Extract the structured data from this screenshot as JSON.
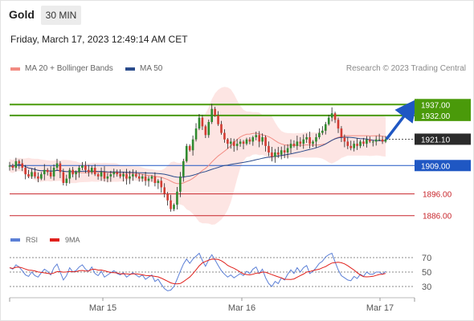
{
  "header": {
    "symbol": "Gold",
    "timeframe": "30 MIN",
    "timestamp": "Friday, March 17, 2023 12:49:14 AM CET"
  },
  "legend": {
    "ma_bb": {
      "label": "MA 20 + Bollinger Bands",
      "color": "#f28b82"
    },
    "ma50": {
      "label": "MA 50",
      "color": "#2b4c8c"
    },
    "credit": "Research © 2023 Trading Central"
  },
  "rsi_legend": {
    "rsi": {
      "label": "RSI",
      "color": "#5b7fd6"
    },
    "ma9": {
      "label": "9MA",
      "color": "#e0201b"
    }
  },
  "chart_data": {
    "type": "candlestick",
    "price_range": [
      1880,
      1950
    ],
    "x_labels": [
      "Mar 15",
      "Mar 16",
      "Mar 17"
    ],
    "levels": [
      {
        "value": 1937.0,
        "label": "1937.00",
        "kind": "resistance",
        "color": "#4a9a0a"
      },
      {
        "value": 1932.0,
        "label": "1932.00",
        "kind": "resistance",
        "color": "#4a9a0a"
      },
      {
        "value": 1921.1,
        "label": "1921.10",
        "kind": "last",
        "color": "#2b2b2b"
      },
      {
        "value": 1909.0,
        "label": "1909.00",
        "kind": "pivot",
        "color": "#1f57c3"
      },
      {
        "value": 1896.0,
        "label": "1896.00",
        "kind": "support",
        "color": "#c8242a"
      },
      {
        "value": 1886.0,
        "label": "1886.00",
        "kind": "support",
        "color": "#c8242a"
      }
    ],
    "forecast_arrow": {
      "from": 1921.1,
      "to": 1937.0,
      "color": "#1f57c3"
    },
    "candles_close": [
      1909,
      1908,
      1911,
      1910,
      1908,
      1905,
      1904,
      1906,
      1904,
      1903,
      1905,
      1907,
      1906,
      1904,
      1908,
      1910,
      1906,
      1901,
      1903,
      1907,
      1905,
      1906,
      1908,
      1909,
      1907,
      1906,
      1908,
      1905,
      1904,
      1906,
      1903,
      1904,
      1905,
      1906,
      1905,
      1904,
      1905,
      1903,
      1904,
      1905,
      1904,
      1903,
      1904,
      1902,
      1903,
      1904,
      1901,
      1902,
      1899,
      1896,
      1893,
      1889,
      1891,
      1897,
      1904,
      1911,
      1918,
      1916,
      1921,
      1926,
      1931,
      1927,
      1923,
      1929,
      1935,
      1932,
      1928,
      1924,
      1921,
      1919,
      1920,
      1918,
      1919,
      1920,
      1919,
      1921,
      1920,
      1922,
      1923,
      1920,
      1922,
      1918,
      1915,
      1913,
      1915,
      1914,
      1916,
      1915,
      1917,
      1919,
      1918,
      1920,
      1919,
      1921,
      1922,
      1919,
      1920,
      1922,
      1924,
      1925,
      1928,
      1931,
      1933,
      1930,
      1926,
      1922,
      1920,
      1918,
      1917,
      1919,
      1918,
      1920,
      1919,
      1921,
      1920,
      1920,
      1921,
      1921,
      1920,
      1921.1
    ],
    "rsi": {
      "levels": [
        70,
        50,
        30
      ],
      "range": [
        20,
        80
      ],
      "values": [
        56,
        54,
        60,
        57,
        52,
        46,
        44,
        50,
        45,
        43,
        49,
        54,
        51,
        46,
        56,
        61,
        50,
        39,
        45,
        56,
        50,
        52,
        57,
        60,
        54,
        51,
        57,
        48,
        45,
        51,
        43,
        46,
        49,
        52,
        48,
        46,
        49,
        43,
        46,
        49,
        46,
        43,
        46,
        40,
        43,
        46,
        37,
        40,
        33,
        27,
        24,
        25,
        30,
        40,
        51,
        61,
        68,
        62,
        68,
        72,
        76,
        66,
        58,
        67,
        74,
        67,
        59,
        52,
        47,
        43,
        46,
        42,
        45,
        48,
        45,
        51,
        48,
        54,
        57,
        48,
        54,
        42,
        34,
        30,
        37,
        34,
        42,
        39,
        47,
        53,
        48,
        56,
        50,
        56,
        59,
        48,
        51,
        56,
        62,
        65,
        71,
        74,
        76,
        64,
        53,
        45,
        42,
        39,
        38,
        44,
        41,
        47,
        44,
        50,
        47,
        47,
        50,
        50,
        47,
        51
      ]
    }
  }
}
